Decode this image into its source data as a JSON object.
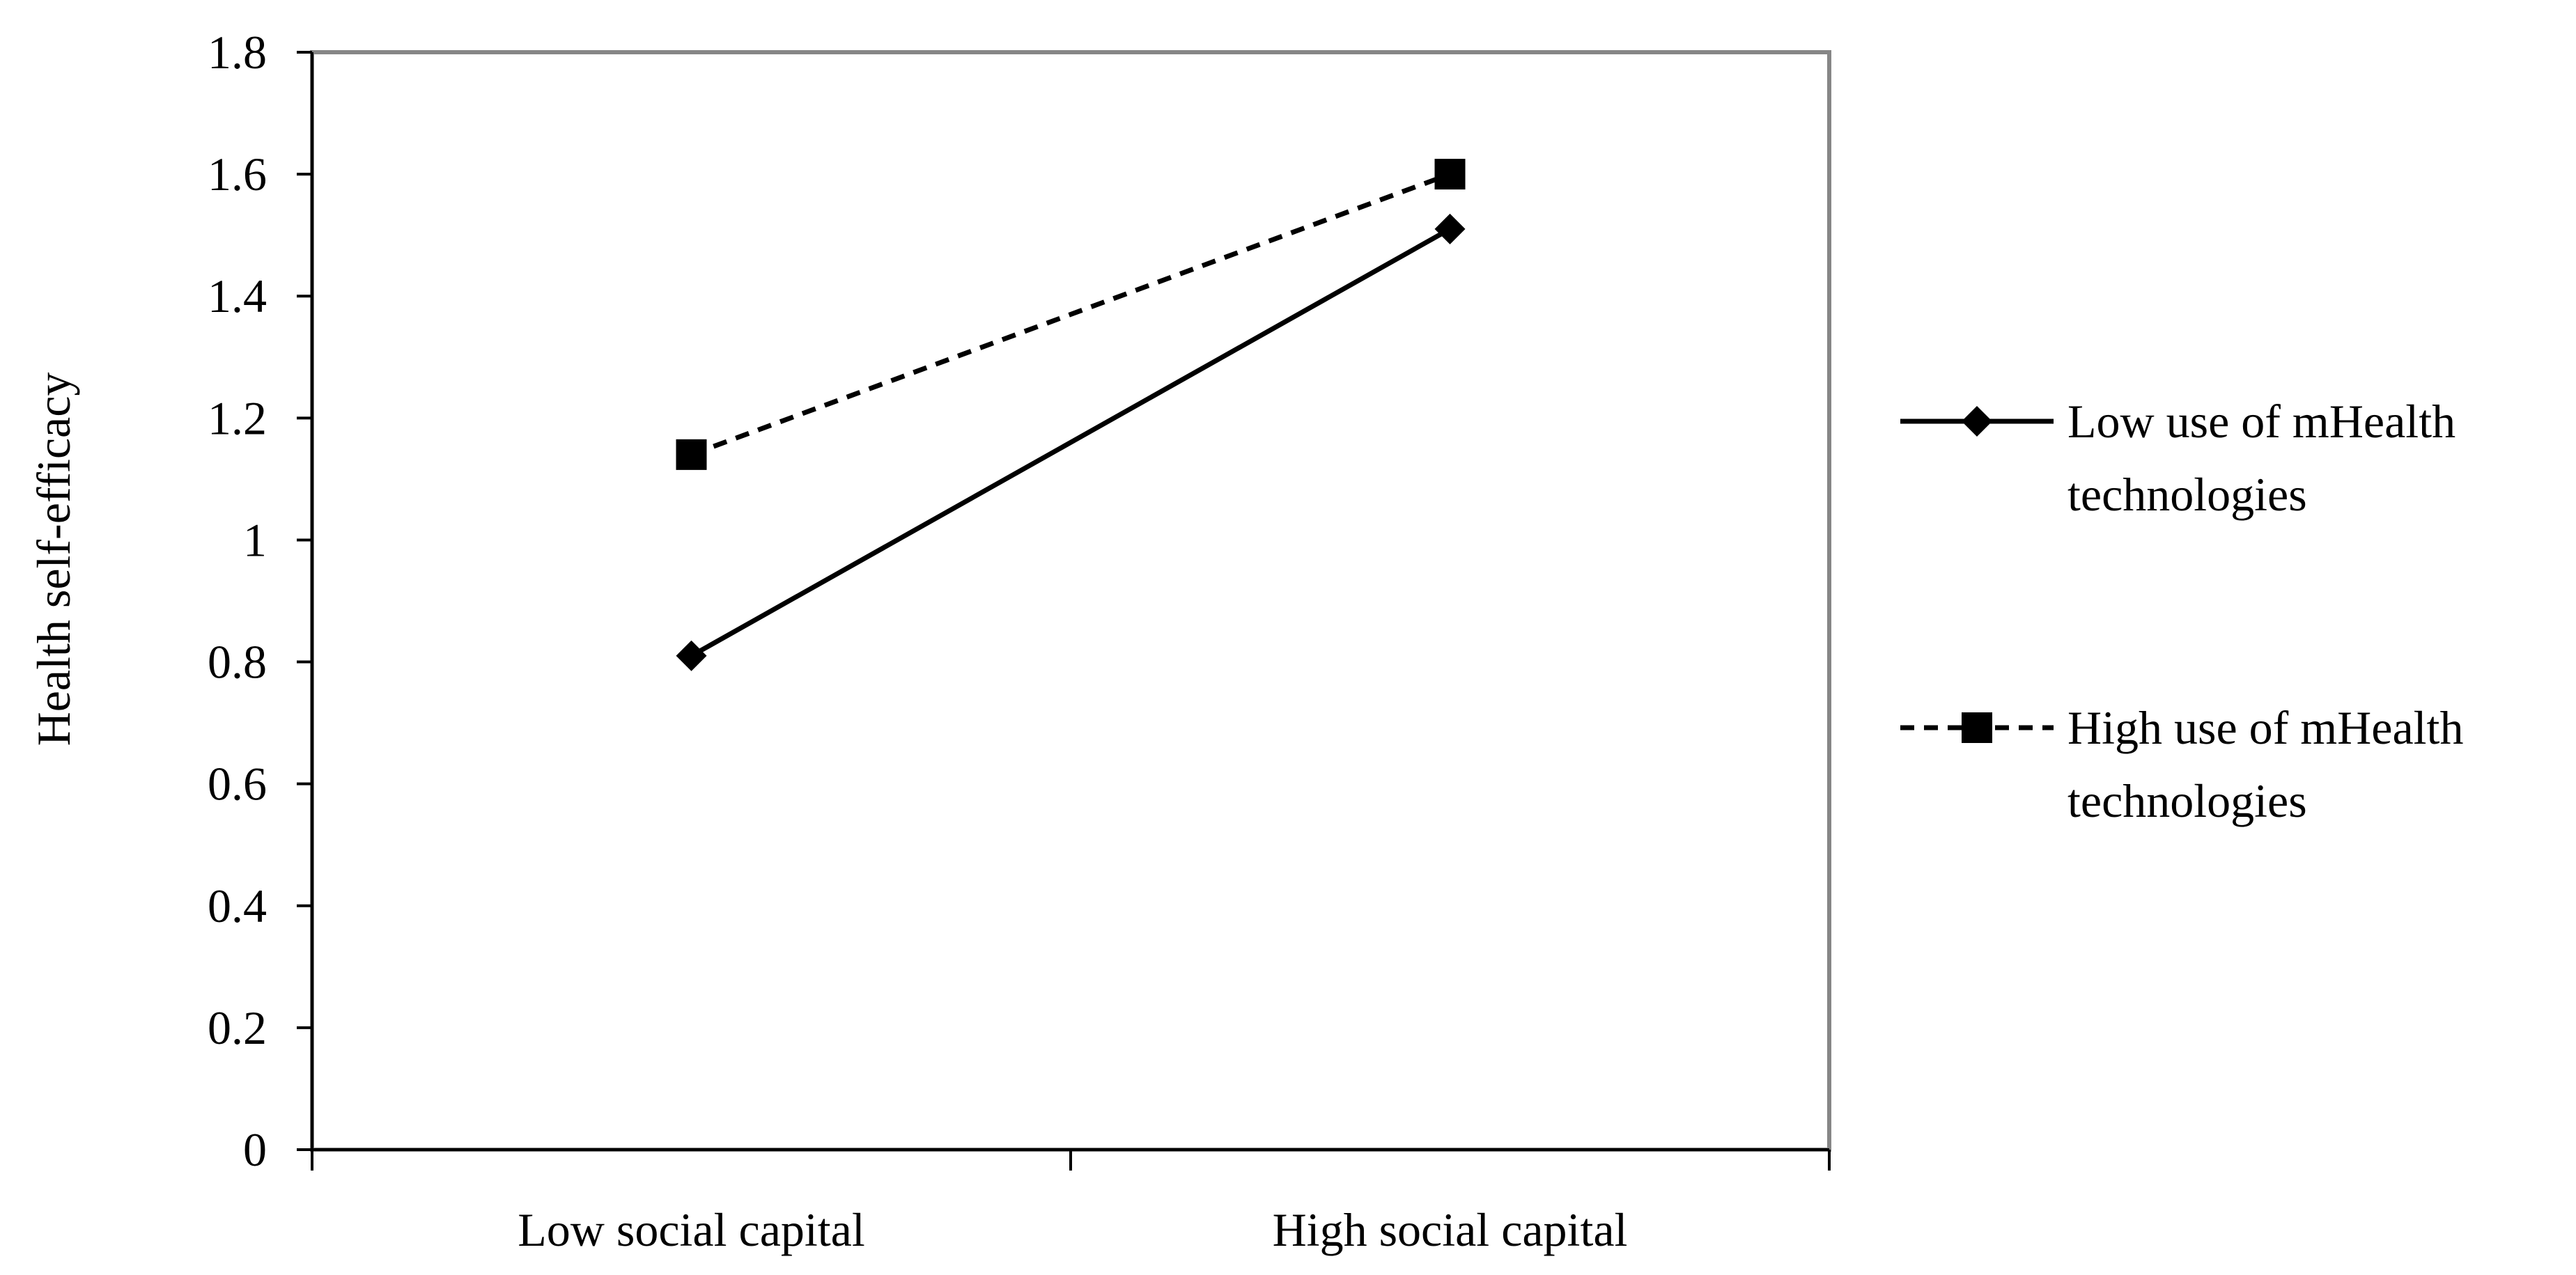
{
  "chart_data": {
    "type": "line",
    "title": "",
    "xlabel": "",
    "ylabel": "Health self-efficacy",
    "categories": [
      "Low social capital",
      "High social capital"
    ],
    "ylim": [
      0,
      1.8
    ],
    "yticks": [
      "0",
      "0.2",
      "0.4",
      "0.6",
      "0.8",
      "1",
      "1.2",
      "1.4",
      "1.6",
      "1.8"
    ],
    "grid": false,
    "legend_position": "right",
    "series": [
      {
        "name_lines": [
          "Low use of mHealth",
          "technologies"
        ],
        "values": [
          0.81,
          1.51
        ],
        "marker": "diamond",
        "line_style": "solid",
        "color": "#000000"
      },
      {
        "name_lines": [
          "High use of mHealth",
          "technologies"
        ],
        "values": [
          1.14,
          1.6
        ],
        "marker": "square",
        "line_style": "dashed",
        "color": "#000000"
      }
    ]
  },
  "colors": {
    "frame": "#868686",
    "axis": "#000000",
    "background": "#ffffff"
  }
}
